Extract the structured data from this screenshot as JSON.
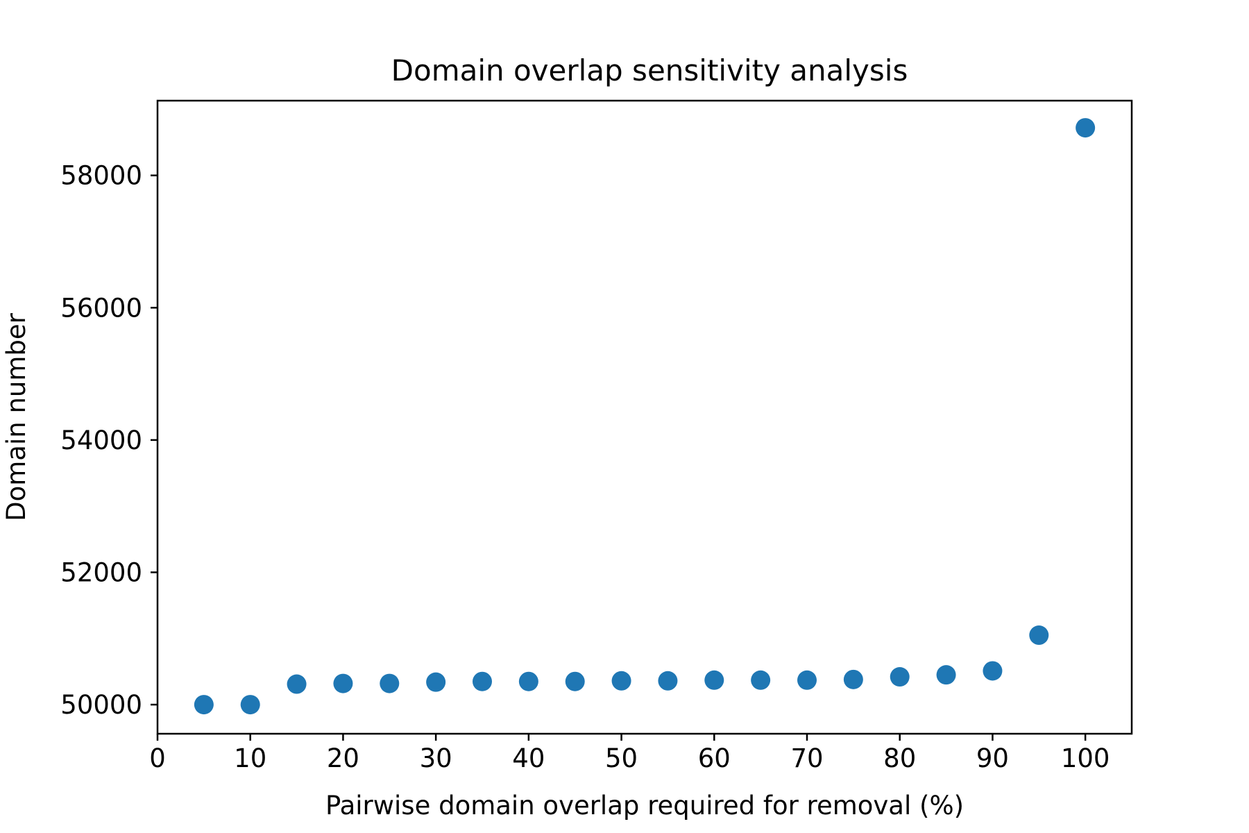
{
  "chart_data": {
    "type": "scatter",
    "title": "Domain overlap sensitivity analysis",
    "xlabel": "Pairwise domain overlap required for removal (%)",
    "ylabel": "Domain number",
    "xlim": [
      0,
      105
    ],
    "ylim": [
      49560,
      59130
    ],
    "x_ticks": [
      0,
      10,
      20,
      30,
      40,
      50,
      60,
      70,
      80,
      90,
      100
    ],
    "y_ticks": [
      50000,
      52000,
      54000,
      56000,
      58000
    ],
    "grid": false,
    "legend": "none",
    "series": [
      {
        "color": "#1f77b4",
        "x": [
          5,
          10,
          15,
          20,
          25,
          30,
          35,
          40,
          45,
          50,
          55,
          60,
          65,
          70,
          75,
          80,
          85,
          90,
          95,
          100
        ],
        "y": [
          50000,
          50000,
          50310,
          50320,
          50320,
          50340,
          50350,
          50350,
          50350,
          50360,
          50360,
          50370,
          50370,
          50370,
          50380,
          50420,
          50450,
          50510,
          51050,
          58720
        ]
      }
    ]
  }
}
